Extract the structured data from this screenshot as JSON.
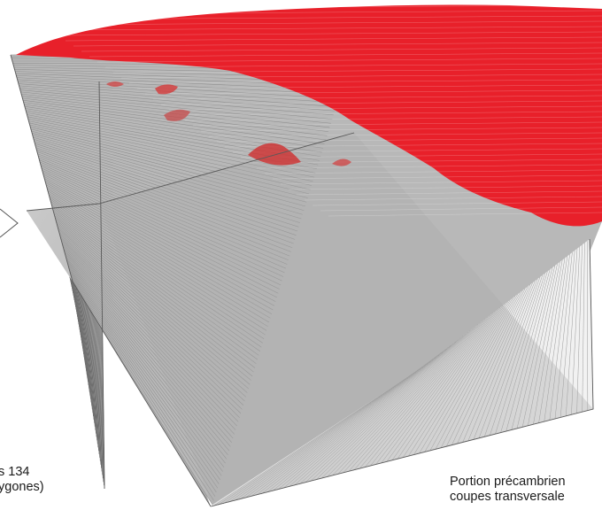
{
  "figure": {
    "caption_left": {
      "line1": "s 134",
      "line2": "ygones)"
    },
    "caption_right": {
      "line1": "Portion précambrien",
      "line2": "coupes transversale"
    }
  },
  "colors": {
    "background": "#ffffff",
    "section_line": "#9a9a9a",
    "section_line_dark": "#6f6f6f",
    "surface_red": "#e8202a",
    "wall_fill": "#d6d6d6",
    "interior_fill": "#bdbdbd",
    "edge": "#555555"
  }
}
